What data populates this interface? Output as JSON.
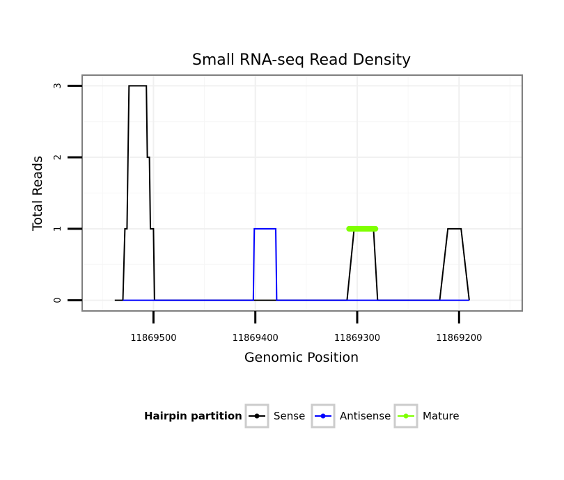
{
  "chart_data": {
    "type": "line",
    "title": "Small RNA-seq Read Density",
    "xlabel": "Genomic Position",
    "ylabel": "Total Reads",
    "x_reversed": true,
    "xlim": [
      11869138,
      11869570
    ],
    "ylim": [
      -0.15,
      3.15
    ],
    "x_ticks": [
      11869500,
      11869400,
      11869300,
      11869200
    ],
    "x_tick_labels": [
      "11869500",
      "11869400",
      "11869300",
      "11869200"
    ],
    "y_ticks": [
      0,
      1,
      2,
      3
    ],
    "y_tick_labels": [
      "0",
      "1",
      "2",
      "3"
    ],
    "grid": true,
    "legend": {
      "title": "Hairpin partition",
      "position": "bottom",
      "entries": [
        "Sense",
        "Antisense",
        "Mature"
      ]
    },
    "series": [
      {
        "name": "Sense",
        "color": "#000000",
        "x": [
          11869538,
          11869530,
          11869528,
          11869526,
          11869524,
          11869507,
          11869506,
          11869504,
          11869503,
          11869500,
          11869499,
          11869409,
          11869395,
          11869310,
          11869303,
          11869284,
          11869280,
          11869219,
          11869211,
          11869198,
          11869190
        ],
        "y": [
          0,
          0,
          1,
          1,
          3,
          3,
          2,
          2,
          1,
          1,
          0,
          0,
          0,
          0,
          1,
          1,
          0,
          0,
          1,
          1,
          0
        ]
      },
      {
        "name": "Antisense",
        "color": "#0000ff",
        "x": [
          11869530,
          11869500,
          11869402,
          11869401,
          11869380,
          11869379,
          11869220,
          11869190
        ],
        "y": [
          0,
          0,
          0,
          1,
          1,
          0,
          0,
          0
        ]
      },
      {
        "name": "Mature",
        "color": "#7fff00",
        "x": [
          11869308,
          11869282
        ],
        "y": [
          1,
          1
        ]
      }
    ]
  }
}
